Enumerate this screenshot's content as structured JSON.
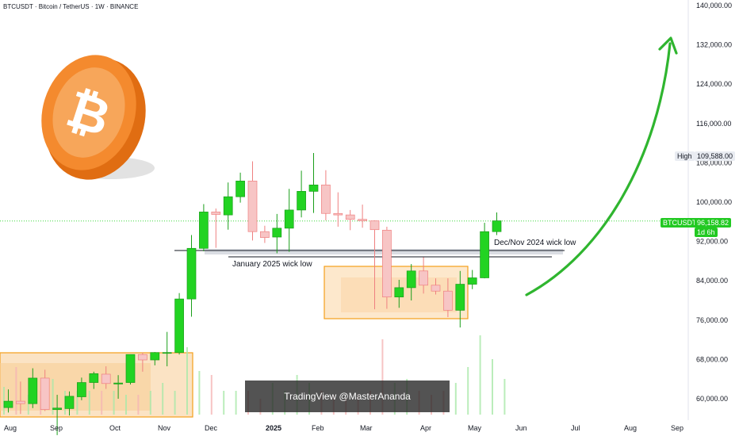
{
  "header": {
    "title": "BTCUSDT · Bitcoin / TetherUS · 1W · BINANCE"
  },
  "price_tags": {
    "high_label": "High",
    "high_value": "109,588.00",
    "symbol": "BTCUSDT",
    "last_price": "96,158.82",
    "countdown": "1d 6h"
  },
  "annotations": {
    "jan_wick": "January 2025 wick low",
    "decnov_wick": "Dec/Nov 2024 wick low"
  },
  "watermark": "TradingView @MasterAnanda",
  "colors": {
    "bull": "#22d322",
    "bear_fill": "#f7c5c5",
    "bear_wick": "#ef8080",
    "box_border": "#f59f1a",
    "arrow": "#2fb52f",
    "coin": "#f48a2e"
  },
  "chart_data": {
    "type": "candlestick",
    "y_axis": {
      "ticks": [
        60000,
        68000,
        76000,
        84000,
        92000,
        100000,
        108000,
        116000,
        124000,
        132000,
        140000
      ],
      "labels": [
        "60,000.00",
        "68,000.00",
        "76,000.00",
        "84,000.00",
        "92,000.00",
        "100,000.00",
        "108,000.00",
        "116,000.00",
        "124,000.00",
        "132,000.00",
        "140,000.00"
      ]
    },
    "x_axis": {
      "labels": [
        "Aug",
        "Sep",
        "Oct",
        "Nov",
        "Dec",
        "2025",
        "Feb",
        "Mar",
        "Apr",
        "May",
        "Jun",
        "Jul",
        "Aug",
        "Sep"
      ]
    },
    "candles": [
      {
        "o": 58200,
        "h": 61900,
        "l": 57200,
        "c": 59500
      },
      {
        "o": 59500,
        "h": 63500,
        "l": 56900,
        "c": 59000
      },
      {
        "o": 59000,
        "h": 66200,
        "l": 58100,
        "c": 64200
      },
      {
        "o": 64200,
        "h": 65900,
        "l": 57500,
        "c": 57800
      },
      {
        "o": 57800,
        "h": 60800,
        "l": 52600,
        "c": 58100
      },
      {
        "o": 58000,
        "h": 61500,
        "l": 56600,
        "c": 60500
      },
      {
        "o": 60400,
        "h": 64300,
        "l": 59700,
        "c": 63300
      },
      {
        "o": 63300,
        "h": 65500,
        "l": 62000,
        "c": 65100
      },
      {
        "o": 65000,
        "h": 66600,
        "l": 62000,
        "c": 63100
      },
      {
        "o": 63000,
        "h": 64800,
        "l": 60000,
        "c": 63200
      },
      {
        "o": 63300,
        "h": 69000,
        "l": 62900,
        "c": 69000
      },
      {
        "o": 69000,
        "h": 69400,
        "l": 65500,
        "c": 67900
      },
      {
        "o": 67900,
        "h": 69500,
        "l": 66800,
        "c": 69400
      },
      {
        "o": 69400,
        "h": 73600,
        "l": 66600,
        "c": 69400
      },
      {
        "o": 69400,
        "h": 81500,
        "l": 69000,
        "c": 80300
      },
      {
        "o": 80300,
        "h": 93300,
        "l": 76700,
        "c": 90600
      },
      {
        "o": 90600,
        "h": 99600,
        "l": 90000,
        "c": 98000
      },
      {
        "o": 98000,
        "h": 98700,
        "l": 90700,
        "c": 97500
      },
      {
        "o": 97400,
        "h": 104000,
        "l": 94400,
        "c": 101100
      },
      {
        "o": 101100,
        "h": 106000,
        "l": 99900,
        "c": 104300
      },
      {
        "o": 104300,
        "h": 108300,
        "l": 92200,
        "c": 94000
      },
      {
        "o": 94000,
        "h": 95200,
        "l": 91700,
        "c": 92800
      },
      {
        "o": 92900,
        "h": 97600,
        "l": 89600,
        "c": 94700
      },
      {
        "o": 94700,
        "h": 102700,
        "l": 89900,
        "c": 98400
      },
      {
        "o": 98400,
        "h": 106400,
        "l": 96900,
        "c": 102200
      },
      {
        "o": 102200,
        "h": 110000,
        "l": 97800,
        "c": 103500
      },
      {
        "o": 103500,
        "h": 106500,
        "l": 96300,
        "c": 97700
      },
      {
        "o": 97700,
        "h": 102000,
        "l": 95000,
        "c": 97400
      },
      {
        "o": 97400,
        "h": 98400,
        "l": 94300,
        "c": 96500
      },
      {
        "o": 96500,
        "h": 99500,
        "l": 94800,
        "c": 96200
      },
      {
        "o": 96200,
        "h": 96300,
        "l": 78200,
        "c": 94400
      },
      {
        "o": 94300,
        "h": 95000,
        "l": 78300,
        "c": 80700
      },
      {
        "o": 80700,
        "h": 84200,
        "l": 78500,
        "c": 82600
      },
      {
        "o": 82600,
        "h": 87400,
        "l": 80000,
        "c": 86000
      },
      {
        "o": 86000,
        "h": 88800,
        "l": 81400,
        "c": 83100
      },
      {
        "o": 83100,
        "h": 84500,
        "l": 81200,
        "c": 81900
      },
      {
        "o": 81900,
        "h": 84500,
        "l": 76600,
        "c": 78000
      },
      {
        "o": 78000,
        "h": 86000,
        "l": 74500,
        "c": 83300
      },
      {
        "o": 83300,
        "h": 86200,
        "l": 82300,
        "c": 84600
      },
      {
        "o": 84600,
        "h": 95800,
        "l": 84500,
        "c": 94000
      },
      {
        "o": 94000,
        "h": 97900,
        "l": 93300,
        "c": 96200
      }
    ],
    "levels": [
      {
        "label": "Dec/Nov 2024 wick low",
        "value": 90500
      },
      {
        "label": "January 2025 wick low",
        "value": 89300
      }
    ],
    "high_marker": 109588,
    "last_price": 96158.82
  }
}
